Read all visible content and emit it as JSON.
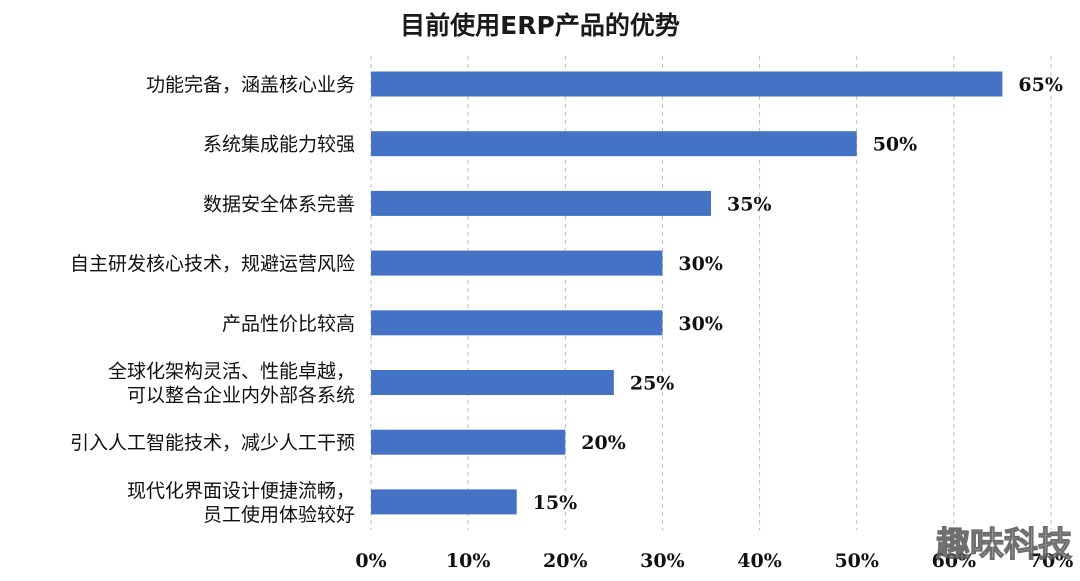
{
  "colors": {
    "bar": "#4472C4",
    "grid": "#bdbdbd",
    "text": "#111111"
  },
  "watermark": "趣味科技",
  "chart_data": {
    "type": "bar",
    "orientation": "horizontal",
    "title": "目前使用ERP产品的优势",
    "xlabel": "",
    "ylabel": "",
    "categories": [
      [
        "功能完备，涵盖核心业务"
      ],
      [
        "系统集成能力较强"
      ],
      [
        "数据安全体系完善"
      ],
      [
        "自主研发核心技术，规避运营风险"
      ],
      [
        "产品性价比较高"
      ],
      [
        "全球化架构灵活、性能卓越，",
        "可以整合企业内外部各系统"
      ],
      [
        "引入人工智能技术，减少人工干预"
      ],
      [
        "现代化界面设计便捷流畅，",
        "员工使用体验较好"
      ]
    ],
    "values": [
      65,
      50,
      35,
      30,
      30,
      25,
      20,
      15
    ],
    "value_labels": [
      "65%",
      "50%",
      "35%",
      "30%",
      "30%",
      "25%",
      "20%",
      "15%"
    ],
    "xlim": [
      0,
      70
    ],
    "xticks": [
      0,
      10,
      20,
      30,
      40,
      50,
      60,
      70
    ],
    "xtick_labels": [
      "0%",
      "10%",
      "20%",
      "30%",
      "40%",
      "50%",
      "60%",
      "70%"
    ],
    "grid": true,
    "legend": "none"
  }
}
